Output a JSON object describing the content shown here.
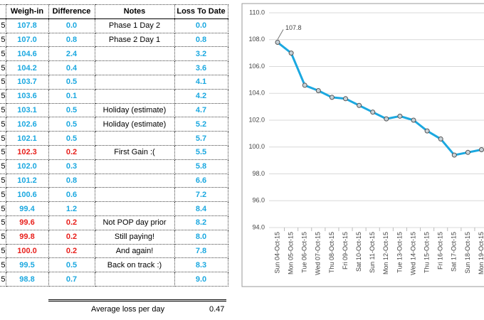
{
  "table": {
    "columns": [
      "Weigh-in",
      "Difference",
      "Notes",
      "Loss To Date"
    ],
    "rows": [
      {
        "date": "5",
        "weigh_in": "107.8",
        "difference": "0.0",
        "notes": "Phase 1 Day 2",
        "loss": "0.0",
        "color": "#1ba8e0"
      },
      {
        "date": "5",
        "weigh_in": "107.0",
        "difference": "0.8",
        "notes": "Phase 2 Day 1",
        "loss": "0.8",
        "color": "#1ba8e0"
      },
      {
        "date": "5",
        "weigh_in": "104.6",
        "difference": "2.4",
        "notes": null,
        "loss": "3.2",
        "color": "#1ba8e0"
      },
      {
        "date": "5",
        "weigh_in": "104.2",
        "difference": "0.4",
        "notes": null,
        "loss": "3.6",
        "color": "#1ba8e0"
      },
      {
        "date": "5",
        "weigh_in": "103.7",
        "difference": "0.5",
        "notes": null,
        "loss": "4.1",
        "color": "#1ba8e0"
      },
      {
        "date": "5",
        "weigh_in": "103.6",
        "difference": "0.1",
        "notes": null,
        "loss": "4.2",
        "color": "#1ba8e0"
      },
      {
        "date": "5",
        "weigh_in": "103.1",
        "difference": "0.5",
        "notes": "Holiday (estimate)",
        "loss": "4.7",
        "color": "#1ba8e0"
      },
      {
        "date": "5",
        "weigh_in": "102.6",
        "difference": "0.5",
        "notes": "Holiday (estimate)",
        "loss": "5.2",
        "color": "#1ba8e0"
      },
      {
        "date": "5",
        "weigh_in": "102.1",
        "difference": "0.5",
        "notes": null,
        "loss": "5.7",
        "color": "#1ba8e0"
      },
      {
        "date": "5",
        "weigh_in": "102.3",
        "difference": "0.2",
        "notes": "First Gain :(",
        "loss": "5.5",
        "color": "#e8201c"
      },
      {
        "date": "5",
        "weigh_in": "102.0",
        "difference": "0.3",
        "notes": null,
        "loss": "5.8",
        "color": "#1ba8e0"
      },
      {
        "date": "5",
        "weigh_in": "101.2",
        "difference": "0.8",
        "notes": null,
        "loss": "6.6",
        "color": "#1ba8e0"
      },
      {
        "date": "5",
        "weigh_in": "100.6",
        "difference": "0.6",
        "notes": null,
        "loss": "7.2",
        "color": "#1ba8e0"
      },
      {
        "date": "5",
        "weigh_in": "99.4",
        "difference": "1.2",
        "notes": null,
        "loss": "8.4",
        "color": "#1ba8e0"
      },
      {
        "date": "5",
        "weigh_in": "99.6",
        "difference": "0.2",
        "notes": "Not POP day prior",
        "loss": "8.2",
        "color": "#e8201c"
      },
      {
        "date": "5",
        "weigh_in": "99.8",
        "difference": "0.2",
        "notes": "Still paying!",
        "loss": "8.0",
        "color": "#e8201c"
      },
      {
        "date": "5",
        "weigh_in": "100.0",
        "difference": "0.2",
        "notes": "And again!",
        "loss": "7.8",
        "color": "#e8201c"
      },
      {
        "date": "5",
        "weigh_in": "99.5",
        "difference": "0.5",
        "notes": "Back on track :)",
        "loss": "8.3",
        "color": "#1ba8e0"
      },
      {
        "date": "5",
        "weigh_in": "98.8",
        "difference": "0.7",
        "notes": null,
        "loss": "9.0",
        "color": "#1ba8e0"
      }
    ]
  },
  "footer": {
    "label": "Average loss per day",
    "value": "0.47"
  },
  "chart_data": {
    "type": "line",
    "categories": [
      "Sun 04-Oct-15",
      "Mon 05-Oct-15",
      "Tue 06-Oct-15",
      "Wed 07-Oct-15",
      "Thu 08-Oct-15",
      "Fri 09-Oct-15",
      "Sat 10-Oct-15",
      "Sun 11-Oct-15",
      "Mon 12-Oct-15",
      "Tue 13-Oct-15",
      "Wed 14-Oct-15",
      "Thu 15-Oct-15",
      "Fri 16-Oct-15",
      "Sat 17-Oct-15",
      "Sun 18-Oct-15",
      "Mon 19-Oct-15"
    ],
    "values": [
      107.8,
      107.0,
      104.6,
      104.2,
      103.7,
      103.6,
      103.1,
      102.6,
      102.1,
      102.3,
      102.0,
      101.2,
      100.6,
      99.4,
      99.6,
      99.8
    ],
    "value_labels": [
      "107.8",
      null,
      null,
      null,
      null,
      null,
      null,
      null,
      null,
      null,
      null,
      null,
      null,
      null,
      null,
      null
    ],
    "color": "#1ba8e0",
    "ylim": [
      94,
      110
    ],
    "yticks": [
      {
        "value": 94,
        "label": "94.0"
      },
      {
        "value": 96,
        "label": "96.0"
      },
      {
        "value": 98,
        "label": "98.0"
      },
      {
        "value": 100,
        "label": "100.0"
      },
      {
        "value": 102,
        "label": "102.0"
      },
      {
        "value": 104,
        "label": "104.0"
      },
      {
        "value": 106,
        "label": "106.0"
      },
      {
        "value": 108,
        "label": "108.0"
      },
      {
        "value": 110,
        "label": "110.0"
      }
    ],
    "grid": true
  }
}
